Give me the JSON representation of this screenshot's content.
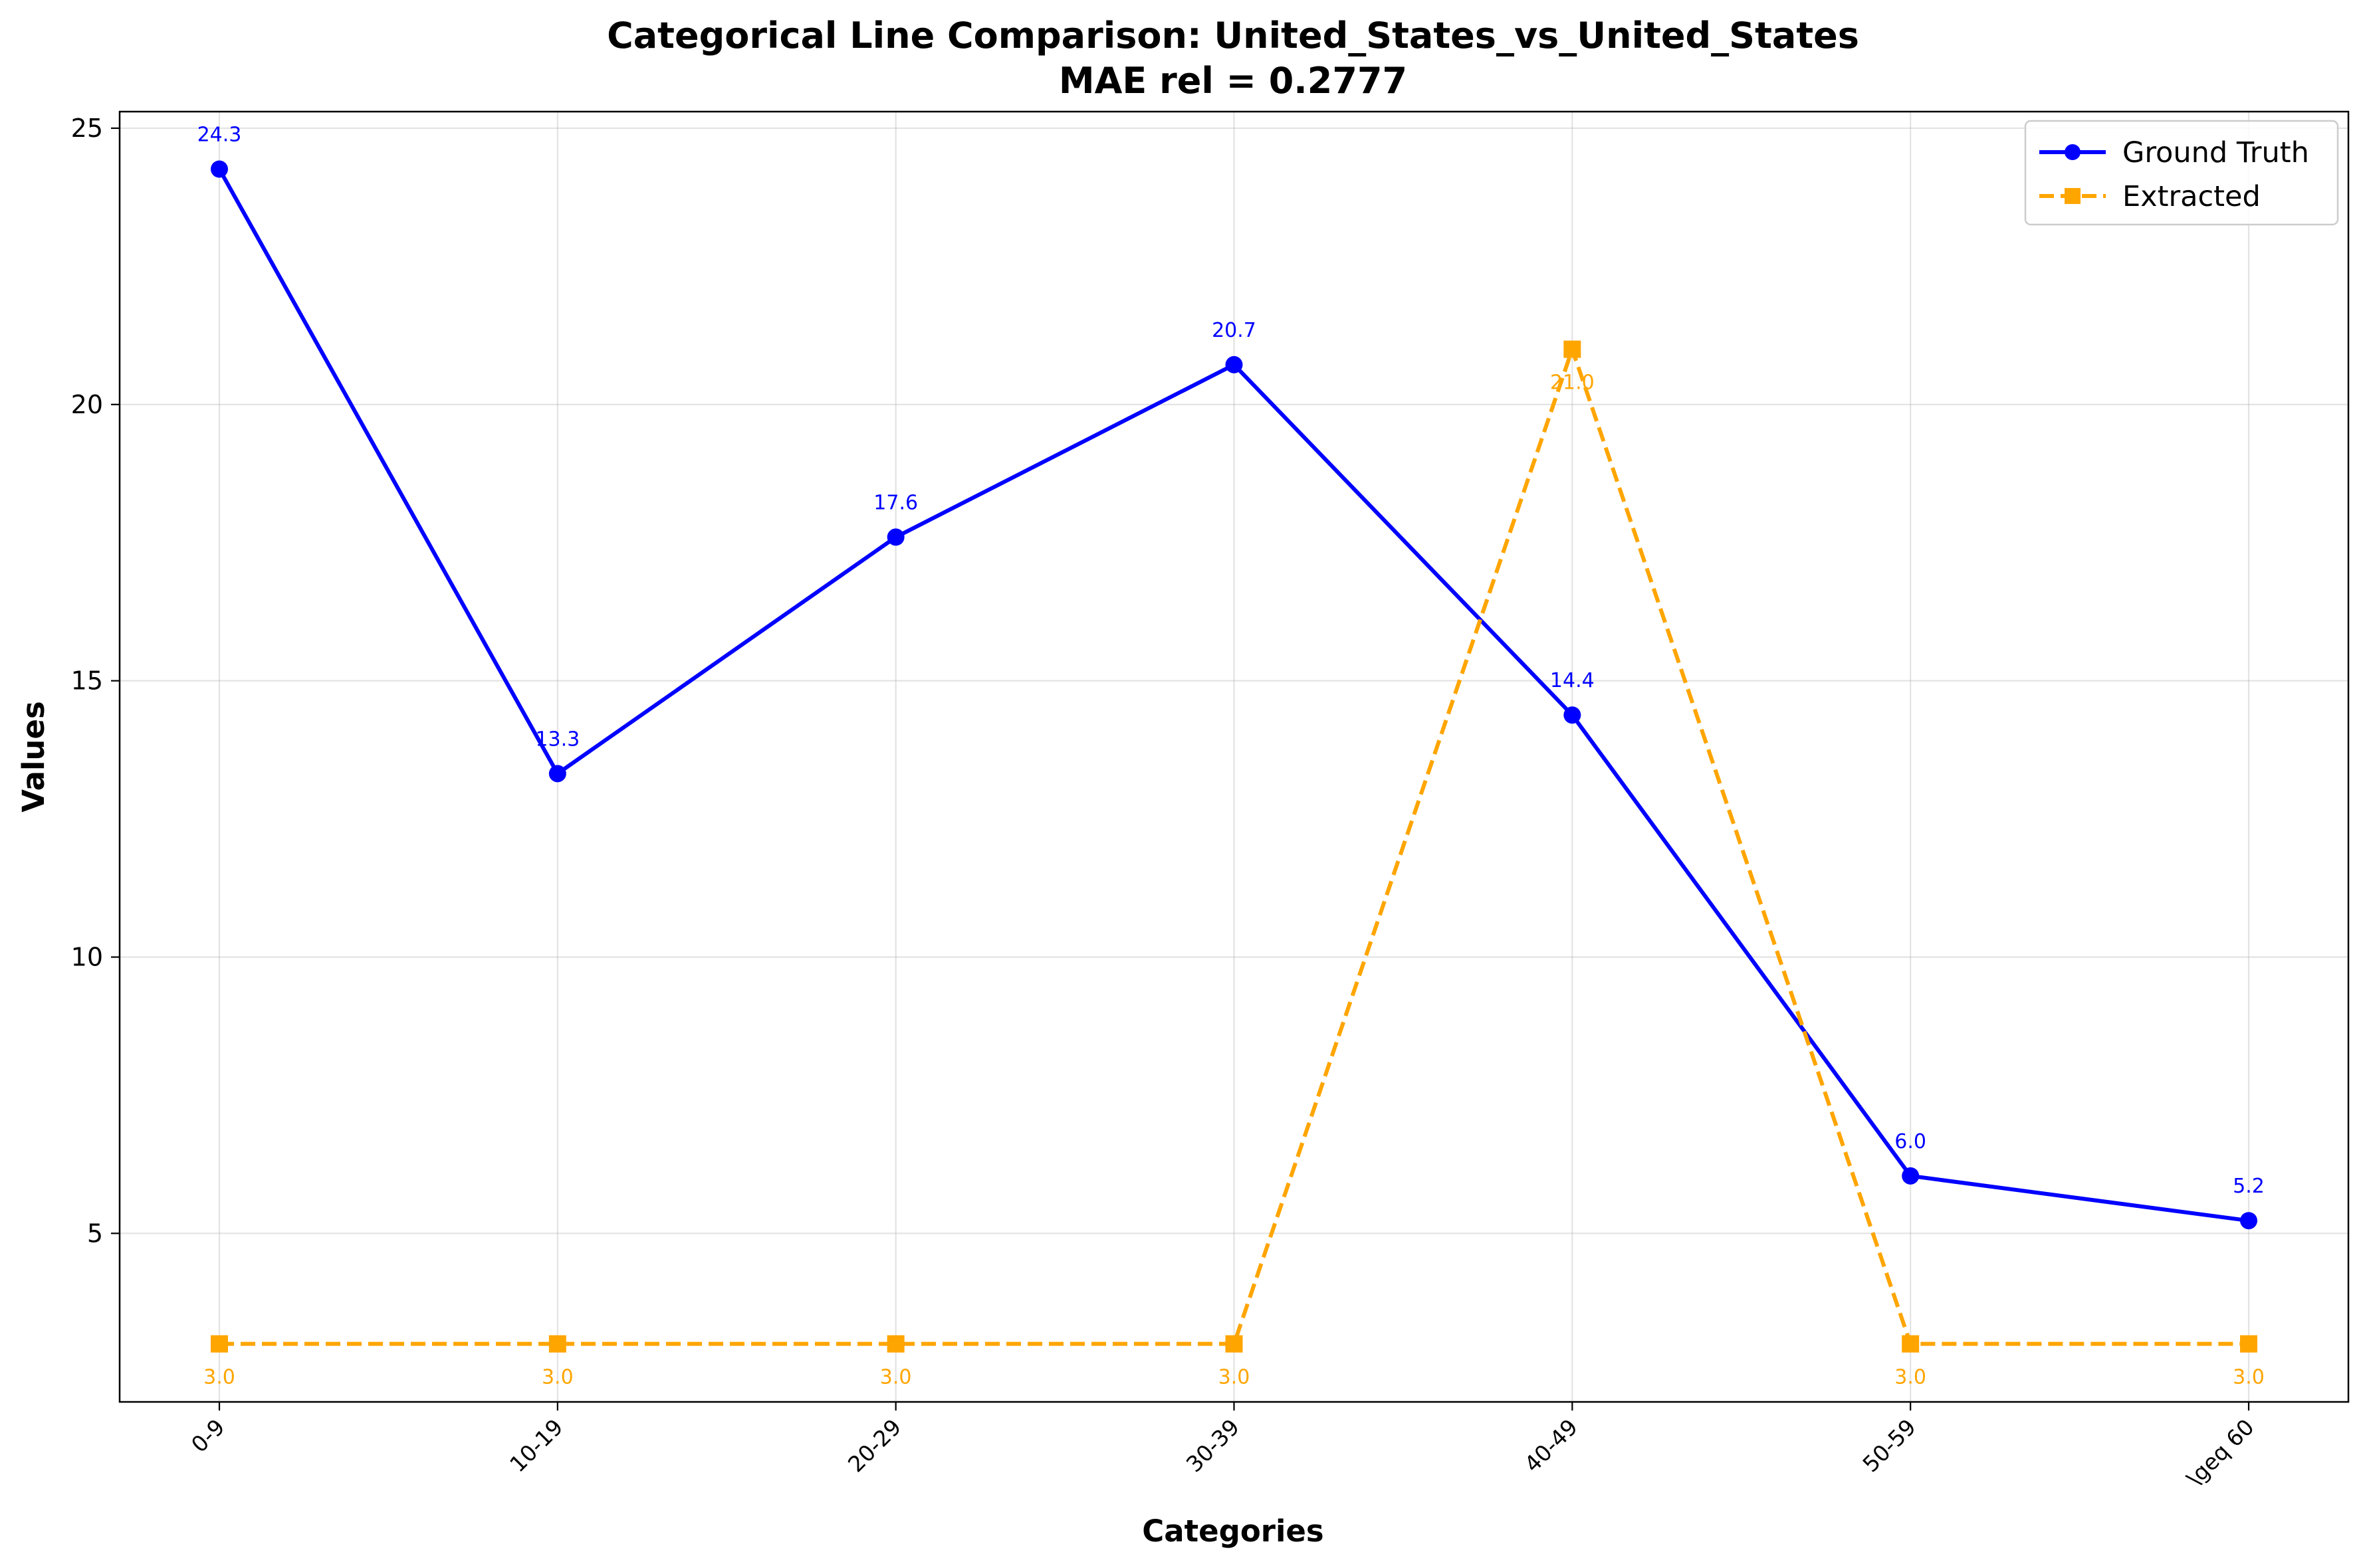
{
  "chart_data": {
    "type": "line",
    "title": "Categorical Line Comparison: United_States_vs_United_States",
    "subtitle": "MAE rel = 0.2777",
    "xlabel": "Categories",
    "ylabel": "Values",
    "categories": [
      "0-9",
      "10-19",
      "20-29",
      "30-39",
      "40-49",
      "50-59",
      "\\geq 60"
    ],
    "ylim": [
      1.95,
      25.3
    ],
    "yticks": [
      5,
      10,
      15,
      20,
      25
    ],
    "grid": true,
    "legend_position": "top-right",
    "series": [
      {
        "name": "Ground Truth",
        "color": "#0000ff",
        "marker": "circle",
        "line_style": "solid",
        "values": [
          24.26,
          13.32,
          17.6,
          20.72,
          14.38,
          6.04,
          5.23
        ],
        "labels": [
          "24.3",
          "13.3",
          "17.6",
          "20.7",
          "14.4",
          "6.0",
          "5.2"
        ]
      },
      {
        "name": "Extracted",
        "color": "#ffa500",
        "marker": "square",
        "line_style": "dashed",
        "values": [
          3.0,
          3.0,
          3.0,
          3.0,
          21.0,
          3.0,
          3.0
        ],
        "labels": [
          "3.0",
          "3.0",
          "3.0",
          "3.0",
          "21.0",
          "3.0",
          "3.0"
        ]
      }
    ]
  }
}
